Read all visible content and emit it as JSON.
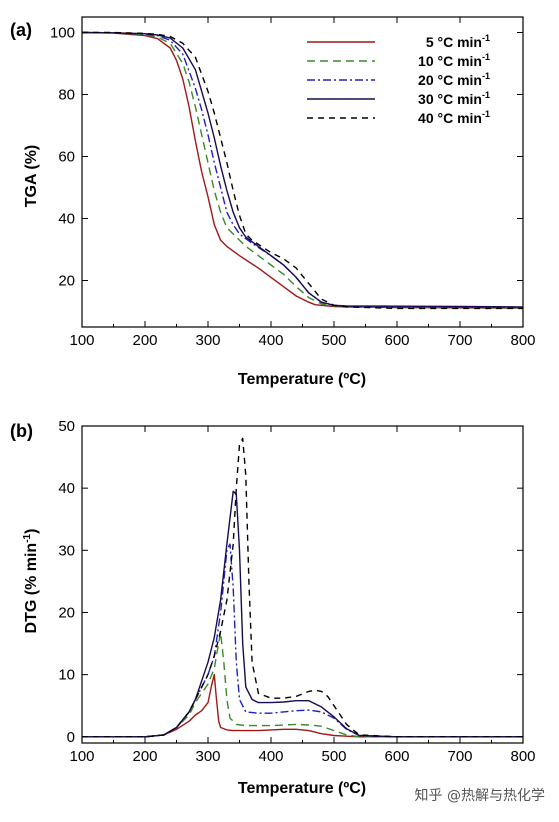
{
  "watermark": "知乎 @热解与热化学",
  "chart_data": [
    {
      "type": "line",
      "panel_label": "(a)",
      "xlabel": "Temperature (ºC)",
      "ylabel": "TGA (%)",
      "xlim": [
        100,
        800
      ],
      "ylim": [
        5,
        105
      ],
      "xticks": [
        100,
        200,
        300,
        400,
        500,
        600,
        700,
        800
      ],
      "yticks": [
        20,
        40,
        60,
        80,
        100
      ],
      "legend_position": "top-right",
      "series": [
        {
          "name": "5 °C min-1",
          "color": "#a01818",
          "dash": "solid",
          "x": [
            100,
            150,
            200,
            220,
            240,
            250,
            260,
            270,
            280,
            290,
            300,
            310,
            320,
            330,
            350,
            380,
            400,
            420,
            440,
            460,
            470,
            480,
            500,
            520,
            600,
            700,
            800
          ],
          "y": [
            100,
            99.8,
            99,
            98,
            95,
            91,
            85,
            76,
            65,
            55,
            47,
            38,
            33,
            31,
            28,
            24,
            21,
            18,
            15,
            13,
            12.2,
            12,
            11.6,
            11.5,
            11.3,
            11.2,
            11.1
          ]
        },
        {
          "name": "10 °C min-1",
          "color": "#3a8a2a",
          "dash": "8,5",
          "x": [
            100,
            150,
            200,
            220,
            240,
            260,
            270,
            280,
            290,
            300,
            310,
            320,
            330,
            340,
            360,
            380,
            400,
            420,
            440,
            460,
            480,
            500,
            520,
            600,
            700,
            800
          ],
          "y": [
            100,
            99.9,
            99.3,
            98.5,
            96.5,
            90,
            84,
            76,
            67,
            58,
            49,
            42,
            37,
            35,
            31,
            28,
            25,
            22,
            18,
            14.5,
            12.5,
            11.8,
            11.6,
            11.4,
            11.3,
            11.2
          ]
        },
        {
          "name": "20 °C min-1",
          "color": "#2020c0",
          "dash": "8,3,2,3",
          "x": [
            100,
            150,
            200,
            220,
            240,
            260,
            280,
            290,
            300,
            310,
            320,
            330,
            340,
            350,
            370,
            400,
            420,
            440,
            460,
            480,
            500,
            520,
            600,
            700,
            800
          ],
          "y": [
            100,
            99.9,
            99.5,
            99,
            97.5,
            93,
            82,
            75,
            67,
            58,
            50,
            42,
            38,
            35,
            32,
            28,
            25,
            21,
            16,
            13,
            12,
            11.6,
            11.5,
            11.4,
            11.3
          ]
        },
        {
          "name": "30 °C min-1",
          "color": "#1a0a50",
          "dash": "solid",
          "x": [
            100,
            150,
            200,
            220,
            240,
            260,
            280,
            300,
            310,
            320,
            330,
            340,
            350,
            360,
            380,
            400,
            420,
            440,
            460,
            480,
            500,
            520,
            600,
            700,
            800
          ],
          "y": [
            100,
            99.9,
            99.6,
            99.2,
            98.2,
            95,
            88,
            74,
            66,
            57,
            49,
            42,
            37,
            34,
            31,
            28,
            25,
            21,
            16,
            13,
            12,
            11.8,
            11.7,
            11.6,
            11.5
          ]
        },
        {
          "name": "40 °C min-1",
          "color": "#000000",
          "dash": "6,5",
          "x": [
            100,
            150,
            200,
            220,
            240,
            260,
            280,
            300,
            310,
            320,
            330,
            340,
            350,
            360,
            370,
            400,
            420,
            440,
            460,
            480,
            500,
            520,
            600,
            700,
            800
          ],
          "y": [
            100,
            100,
            99.7,
            99.4,
            98.7,
            96.5,
            92,
            81,
            74,
            66,
            58,
            49,
            41,
            35,
            33,
            29,
            27,
            24,
            19,
            14,
            12,
            11.5,
            11,
            11,
            11
          ]
        }
      ]
    },
    {
      "type": "line",
      "panel_label": "(b)",
      "xlabel": "Temperature (ºC)",
      "ylabel": "DTG (% min-1)",
      "xlim": [
        100,
        800
      ],
      "ylim": [
        -1,
        50
      ],
      "xticks": [
        100,
        200,
        300,
        400,
        500,
        600,
        700,
        800
      ],
      "yticks": [
        0,
        10,
        20,
        30,
        40,
        50
      ],
      "series": [
        {
          "name": "5 °C min-1",
          "color": "#a01818",
          "dash": "solid",
          "x": [
            100,
            200,
            230,
            250,
            270,
            280,
            290,
            300,
            305,
            310,
            313,
            317,
            320,
            330,
            340,
            360,
            380,
            400,
            420,
            440,
            460,
            480,
            500,
            520,
            540,
            600,
            800
          ],
          "y": [
            0,
            0,
            0.3,
            1.2,
            2.5,
            3.5,
            4.2,
            5.5,
            8,
            10,
            6.5,
            2.5,
            1.5,
            1.1,
            1,
            1,
            1,
            1.1,
            1.2,
            1.2,
            1,
            0.5,
            0.2,
            0.1,
            0,
            0,
            0
          ]
        },
        {
          "name": "10 °C min-1",
          "color": "#3a8a2a",
          "dash": "8,5",
          "x": [
            100,
            200,
            230,
            250,
            270,
            280,
            290,
            300,
            310,
            315,
            320,
            325,
            330,
            335,
            345,
            360,
            380,
            400,
            420,
            440,
            460,
            480,
            500,
            520,
            540,
            600,
            800
          ],
          "y": [
            0,
            0,
            0.3,
            1.5,
            3.5,
            5.5,
            7,
            8.5,
            11,
            14,
            16.8,
            12,
            6,
            3,
            2,
            1.8,
            1.8,
            1.8,
            1.9,
            2,
            1.9,
            1.7,
            1,
            0.3,
            0,
            0,
            0
          ]
        },
        {
          "name": "20 °C min-1",
          "color": "#2020c0",
          "dash": "8,3,2,3",
          "x": [
            100,
            200,
            230,
            250,
            270,
            280,
            290,
            300,
            310,
            320,
            330,
            335,
            340,
            345,
            350,
            360,
            380,
            400,
            420,
            440,
            460,
            480,
            500,
            520,
            540,
            600,
            800
          ],
          "y": [
            0,
            0,
            0.3,
            1.5,
            4,
            6,
            8,
            10,
            13,
            20,
            30,
            31,
            24,
            12,
            6,
            4,
            3.8,
            3.8,
            4,
            4.2,
            4.3,
            4,
            3,
            1.2,
            0.2,
            0,
            0
          ]
        },
        {
          "name": "30 °C min-1",
          "color": "#1a0a50",
          "dash": "solid",
          "x": [
            100,
            200,
            230,
            250,
            270,
            280,
            290,
            300,
            310,
            320,
            330,
            340,
            345,
            350,
            355,
            360,
            370,
            380,
            400,
            420,
            440,
            460,
            480,
            500,
            520,
            540,
            600,
            800
          ],
          "y": [
            0,
            0,
            0.3,
            1.5,
            4,
            6,
            9,
            12,
            16,
            22,
            31,
            39.5,
            39,
            30,
            15,
            8,
            6,
            5.5,
            5.5,
            5.6,
            5.8,
            5.8,
            4.8,
            3.2,
            1.3,
            0.2,
            0,
            0
          ]
        },
        {
          "name": "40 °C min-1",
          "color": "#000000",
          "dash": "6,5",
          "x": [
            100,
            200,
            230,
            250,
            270,
            280,
            290,
            300,
            310,
            320,
            330,
            340,
            345,
            350,
            355,
            360,
            365,
            370,
            380,
            400,
            420,
            440,
            460,
            470,
            480,
            490,
            500,
            520,
            540,
            600,
            800
          ],
          "y": [
            0,
            0,
            0.3,
            1.5,
            4,
            6,
            8,
            10,
            13,
            17,
            22,
            31,
            40,
            47,
            48,
            42,
            25,
            12,
            7,
            6.2,
            6.2,
            6.5,
            7.3,
            7.5,
            7.3,
            6.5,
            5,
            2,
            0.3,
            0,
            0
          ]
        }
      ]
    }
  ]
}
